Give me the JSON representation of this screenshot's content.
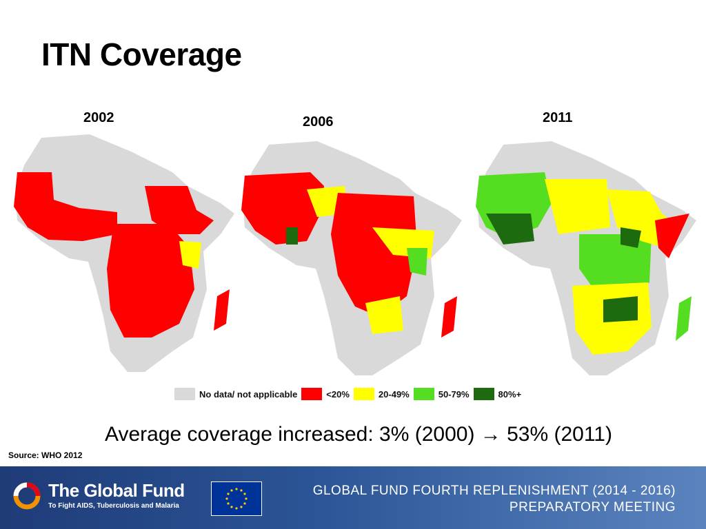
{
  "slide": {
    "title": "ITN Coverage"
  },
  "maps": [
    {
      "year": "2002"
    },
    {
      "year": "2006"
    },
    {
      "year": "2011"
    }
  ],
  "legend": [
    {
      "label": "No data/ not applicable",
      "color": "#d9d9d9"
    },
    {
      "label": "<20%",
      "color": "#ff0000"
    },
    {
      "label": "20-49%",
      "color": "#ffff00"
    },
    {
      "label": "50-79%",
      "color": "#55dd22"
    },
    {
      "label": "80%+",
      "color": "#1e6b0f"
    }
  ],
  "headline": {
    "text": "Average coverage increased:  3% (2000) →  53% (2011)"
  },
  "source": {
    "text": "Source: WHO 2012"
  },
  "footer": {
    "org_name": "The Global Fund",
    "org_tagline": "To Fight AIDS, Tuberculosis and Malaria",
    "meeting_title": "GLOBAL FUND FOURTH REPLENISHMENT (2014 - 2016)",
    "meeting_subtitle": "PREPARATORY MEETING"
  }
}
